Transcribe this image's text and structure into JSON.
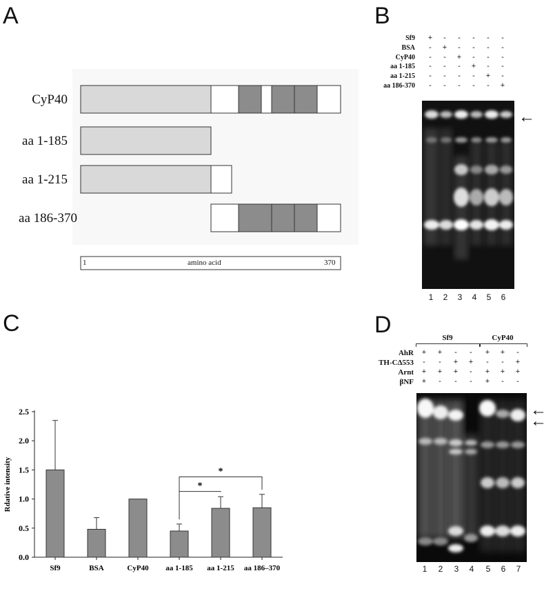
{
  "panels": {
    "A": "A",
    "B": "B",
    "C": "C",
    "D": "D"
  },
  "panel_a": {
    "constructs": [
      {
        "label": "CyP40"
      },
      {
        "label": "aa 1-185"
      },
      {
        "label": "aa 1-215"
      },
      {
        "label": "aa 186-370"
      }
    ],
    "scale": {
      "start": "1",
      "middle": "amino acid",
      "end": "370"
    },
    "colors": {
      "light": "#d9d9d9",
      "dark": "#8c8c8c",
      "outline": "#333333"
    }
  },
  "panel_b": {
    "row_labels": [
      "Sf9",
      "BSA",
      "CyP40",
      "aa 1-185",
      "aa 1-215",
      "aa 186-370"
    ],
    "row_signs": [
      [
        "+",
        "-",
        "-",
        "-",
        "-",
        "-"
      ],
      [
        "-",
        "+",
        "-",
        "-",
        "-",
        "-"
      ],
      [
        "-",
        "-",
        "+",
        "-",
        "-",
        "-"
      ],
      [
        "-",
        "-",
        "-",
        "+",
        "-",
        "-"
      ],
      [
        "-",
        "-",
        "-",
        "-",
        "+",
        "-"
      ],
      [
        "-",
        "-",
        "-",
        "-",
        "-",
        "+"
      ]
    ],
    "lanes": [
      "1",
      "2",
      "3",
      "4",
      "5",
      "6"
    ],
    "arrow": "←"
  },
  "panel_d": {
    "groups": [
      {
        "label": "Sf9"
      },
      {
        "label": "CyP40"
      }
    ],
    "row_labels": [
      "AhR",
      "TH-CΔ553",
      "Arnt",
      "βNF"
    ],
    "row_signs": [
      [
        "+",
        "+",
        "-",
        "-",
        "+",
        "+",
        "-"
      ],
      [
        "-",
        "-",
        "+",
        "+",
        "-",
        "-",
        "+"
      ],
      [
        "+",
        "+",
        "+",
        "-",
        "+",
        "+",
        "+"
      ],
      [
        "+",
        "-",
        "-",
        "-",
        "+",
        "-",
        "-"
      ]
    ],
    "lanes": [
      "1",
      "2",
      "3",
      "4",
      "5",
      "6",
      "7"
    ],
    "arrow": "←"
  },
  "chart_data": {
    "type": "bar",
    "categories": [
      "Sf9",
      "BSA",
      "CyP40",
      "aa 1-185",
      "aa 1-215",
      "aa 186–370"
    ],
    "values": [
      1.5,
      0.48,
      1.0,
      0.45,
      0.84,
      0.85
    ],
    "errors": [
      0.85,
      0.2,
      0.0,
      0.12,
      0.2,
      0.23
    ],
    "ylabel": "Rdative intensity",
    "ylim": [
      0,
      2.5
    ],
    "yticks": [
      "0.0",
      "0.5",
      "1.0",
      "1.5",
      "2.0",
      "2.5"
    ],
    "bar_color": "#8c8c8c",
    "significance": [
      {
        "from": "aa 1-185",
        "to": "aa 1-215",
        "label": "*"
      },
      {
        "from": "aa 1-185",
        "to": "aa 186–370",
        "label": "*"
      }
    ]
  }
}
